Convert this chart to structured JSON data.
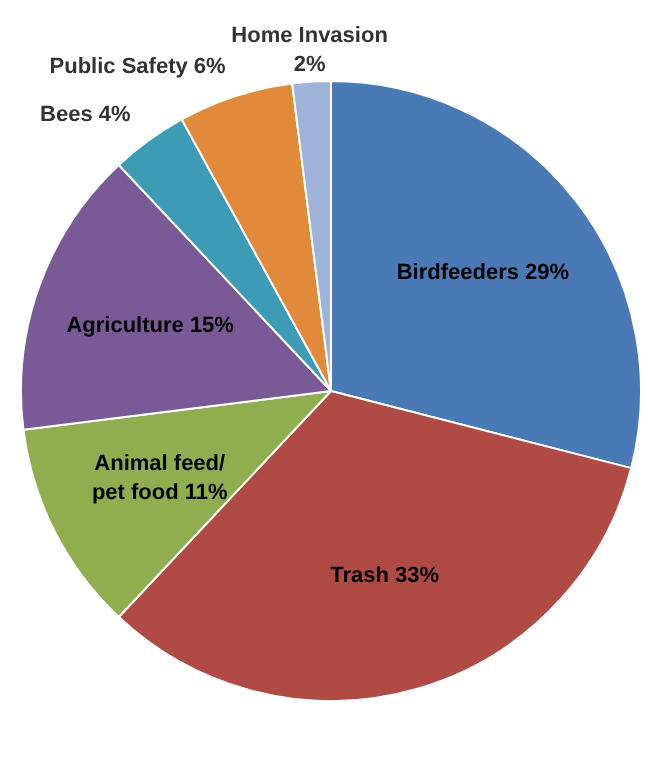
{
  "chart_data": {
    "type": "pie",
    "categories": [
      "Birdfeeders",
      "Trash",
      "Animal feed/pet food",
      "Agriculture",
      "Bees",
      "Public Safety",
      "Home Invasion"
    ],
    "values": [
      29,
      33,
      11,
      15,
      4,
      6,
      2
    ],
    "colors": [
      "#4a7ab5",
      "#b04a45",
      "#90ad4f",
      "#7a5a96",
      "#3d9bb5",
      "#e08a3c",
      "#9db3d8"
    ],
    "value_labels": [
      "29%",
      "33%",
      "11%",
      "15%",
      "4%",
      "6%",
      "2%"
    ]
  }
}
